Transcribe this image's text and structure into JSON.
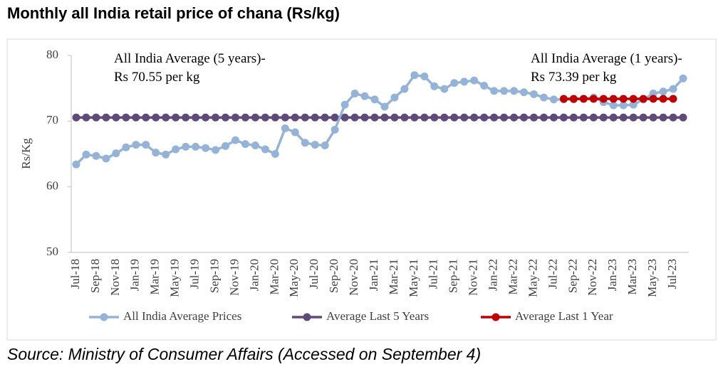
{
  "chart_data": {
    "type": "line",
    "title": "Monthly all India retail price of chana (Rs/kg)",
    "source": "Source: Ministry of Consumer Affairs (Accessed on September 4)",
    "y_label": "Rs/Kg",
    "annotations": [
      "All India Average (5 years)- Rs 70.55 per kg",
      "All India Average (1 years)- Rs 73.39 per kg"
    ],
    "categories": [
      "Jul-18",
      null,
      "Sep-18",
      null,
      "Nov-18",
      null,
      "Jan-19",
      null,
      "Mar-19",
      null,
      "May-19",
      null,
      "Jul-19",
      null,
      "Sep-19",
      null,
      "Nov-19",
      null,
      "Jan-20",
      null,
      "Mar-20",
      null,
      "May-20",
      null,
      "Jul-20",
      null,
      "Sep-20",
      null,
      "Nov-20",
      null,
      "Jan-21",
      null,
      "Mar-21",
      null,
      "May-21",
      null,
      "Jul-21",
      null,
      "Sep-21",
      null,
      "Nov-21",
      null,
      "Jan-22",
      null,
      "Mar-22",
      null,
      "May-22",
      null,
      "Jul-22",
      null,
      "Sep-22",
      null,
      "Nov-22",
      null,
      "Jan-23",
      null,
      "Mar-23",
      null,
      "May-23",
      null,
      "Jul-23",
      null
    ],
    "series": [
      {
        "name": "All India Average Prices",
        "color": "#95b3d7",
        "values": [
          63.4,
          64.9,
          64.7,
          64.3,
          65.1,
          66.0,
          66.4,
          66.4,
          65.2,
          64.9,
          65.7,
          66.1,
          66.1,
          65.9,
          65.6,
          66.2,
          67.1,
          66.5,
          66.3,
          65.7,
          65.0,
          68.9,
          68.3,
          66.7,
          66.4,
          66.3,
          68.7,
          72.5,
          74.2,
          73.8,
          73.3,
          72.2,
          73.6,
          74.9,
          77.0,
          76.8,
          75.3,
          74.9,
          75.8,
          76.0,
          76.2,
          75.4,
          74.6,
          74.6,
          74.6,
          74.4,
          74.1,
          73.6,
          73.3,
          73.3,
          73.3,
          73.4,
          73.6,
          72.9,
          72.4,
          72.4,
          72.5,
          73.3,
          74.2,
          74.5,
          74.9,
          76.5
        ]
      },
      {
        "name": "Average Last 5 Years",
        "color": "#604a7b",
        "values": [
          70.55,
          70.55,
          70.55,
          70.55,
          70.55,
          70.55,
          70.55,
          70.55,
          70.55,
          70.55,
          70.55,
          70.55,
          70.55,
          70.55,
          70.55,
          70.55,
          70.55,
          70.55,
          70.55,
          70.55,
          70.55,
          70.55,
          70.55,
          70.55,
          70.55,
          70.55,
          70.55,
          70.55,
          70.55,
          70.55,
          70.55,
          70.55,
          70.55,
          70.55,
          70.55,
          70.55,
          70.55,
          70.55,
          70.55,
          70.55,
          70.55,
          70.55,
          70.55,
          70.55,
          70.55,
          70.55,
          70.55,
          70.55,
          70.55,
          70.55,
          70.55,
          70.55,
          70.55,
          70.55,
          70.55,
          70.55,
          70.55,
          70.55,
          70.55,
          70.55,
          70.55,
          70.55
        ]
      },
      {
        "name": "Average Last 1 Year",
        "color": "#c00000",
        "values": [
          null,
          null,
          null,
          null,
          null,
          null,
          null,
          null,
          null,
          null,
          null,
          null,
          null,
          null,
          null,
          null,
          null,
          null,
          null,
          null,
          null,
          null,
          null,
          null,
          null,
          null,
          null,
          null,
          null,
          null,
          null,
          null,
          null,
          null,
          null,
          null,
          null,
          null,
          null,
          null,
          null,
          null,
          null,
          null,
          null,
          null,
          null,
          null,
          null,
          73.39,
          73.39,
          73.39,
          73.39,
          73.39,
          73.39,
          73.39,
          73.39,
          73.39,
          73.39,
          73.39,
          73.39,
          null
        ]
      }
    ],
    "ylim": [
      50,
      80
    ],
    "yticks": [
      50,
      60,
      70,
      80
    ],
    "grid": false,
    "legend": "bottom"
  }
}
